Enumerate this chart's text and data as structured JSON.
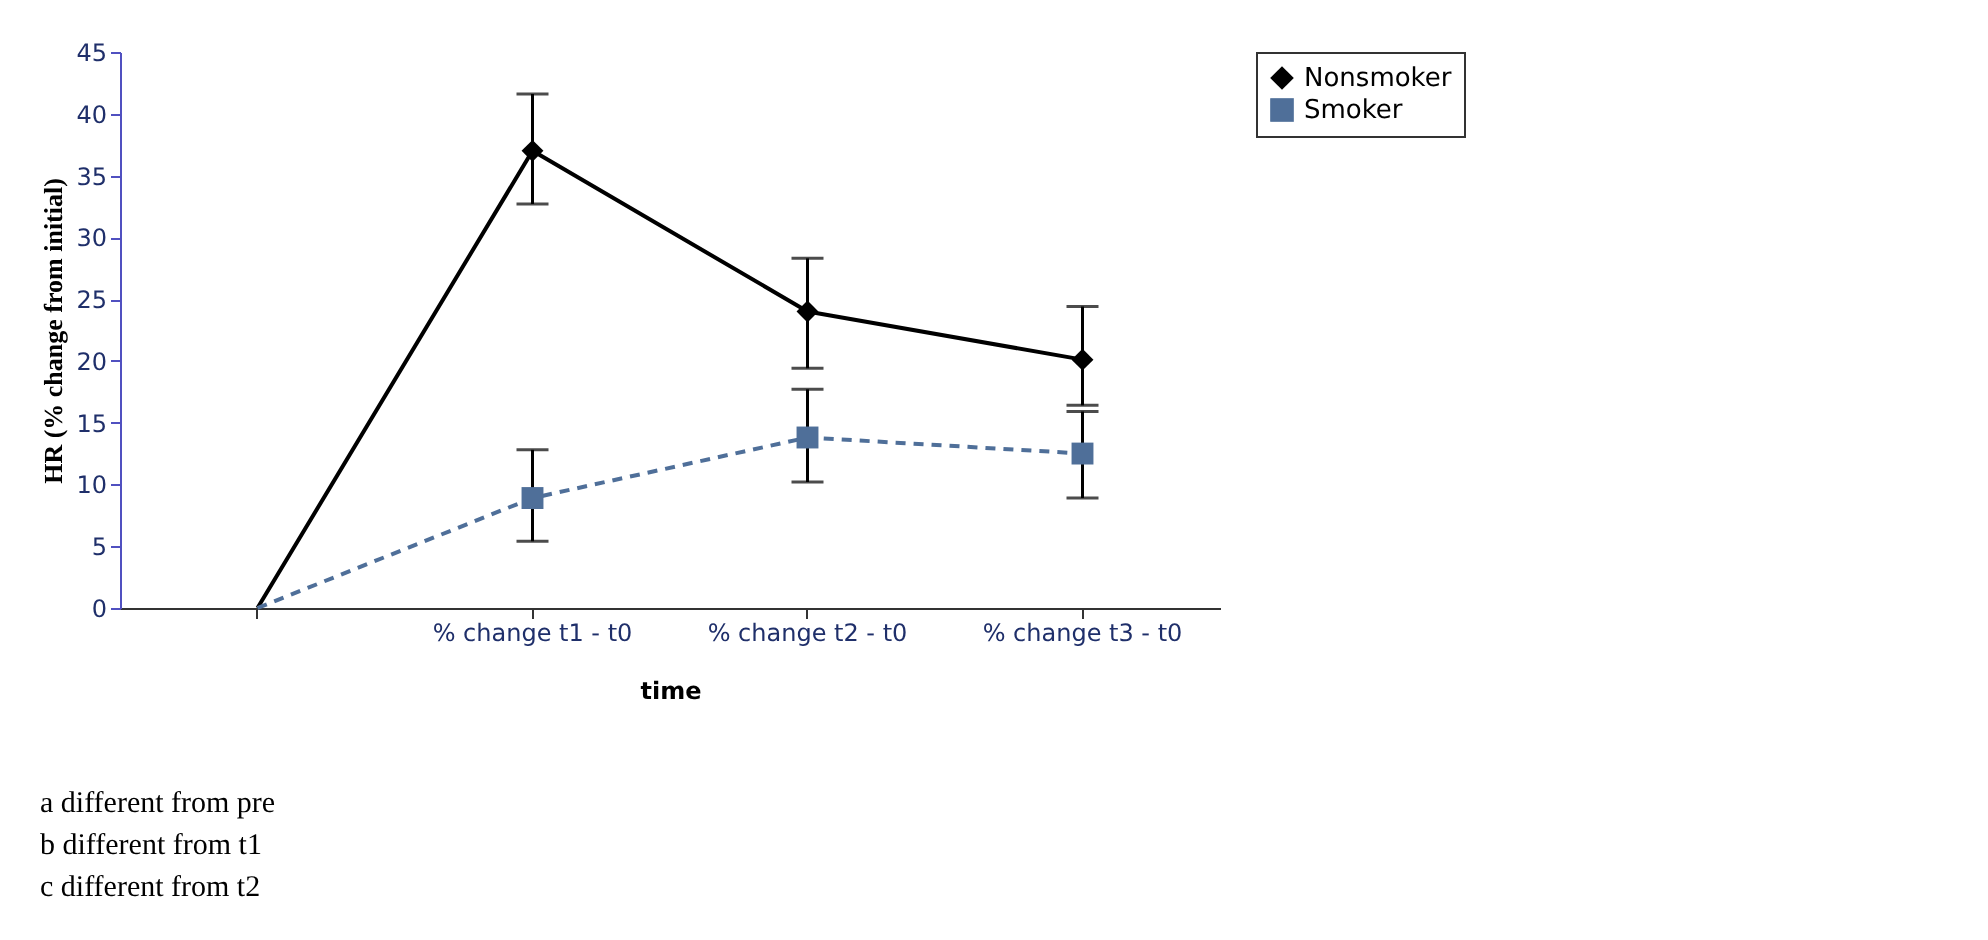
{
  "chart_data": {
    "type": "line",
    "xlabel": "time",
    "ylabel": "HR (% change from initial)",
    "categories": [
      null,
      "% change t1 - t0",
      "% change t2 - t0",
      "% change t3 - t0"
    ],
    "series": [
      {
        "name": "Nonsmoker",
        "color": "#000000",
        "marker": "diamond",
        "line_style": "solid",
        "values": [
          0,
          37,
          24,
          20.1
        ],
        "errors": [
          null,
          [
            32.7,
            41.6
          ],
          [
            19.4,
            28.3
          ],
          [
            16.4,
            24.4
          ]
        ]
      },
      {
        "name": "Smoker",
        "color": "#4f6f99",
        "marker": "square",
        "line_style": "dashed",
        "values": [
          0,
          8.9,
          13.8,
          12.5
        ],
        "errors": [
          null,
          [
            5.4,
            12.8
          ],
          [
            10.2,
            17.7
          ],
          [
            8.9,
            15.9
          ]
        ]
      }
    ],
    "ylim": [
      0,
      45
    ],
    "yticks": [
      0,
      5,
      10,
      15,
      20,
      25,
      30,
      35,
      40,
      45
    ],
    "grid": false,
    "legend": "right",
    "annotations": [
      "a different from pre",
      "b different from t1",
      "c different from t2"
    ]
  }
}
